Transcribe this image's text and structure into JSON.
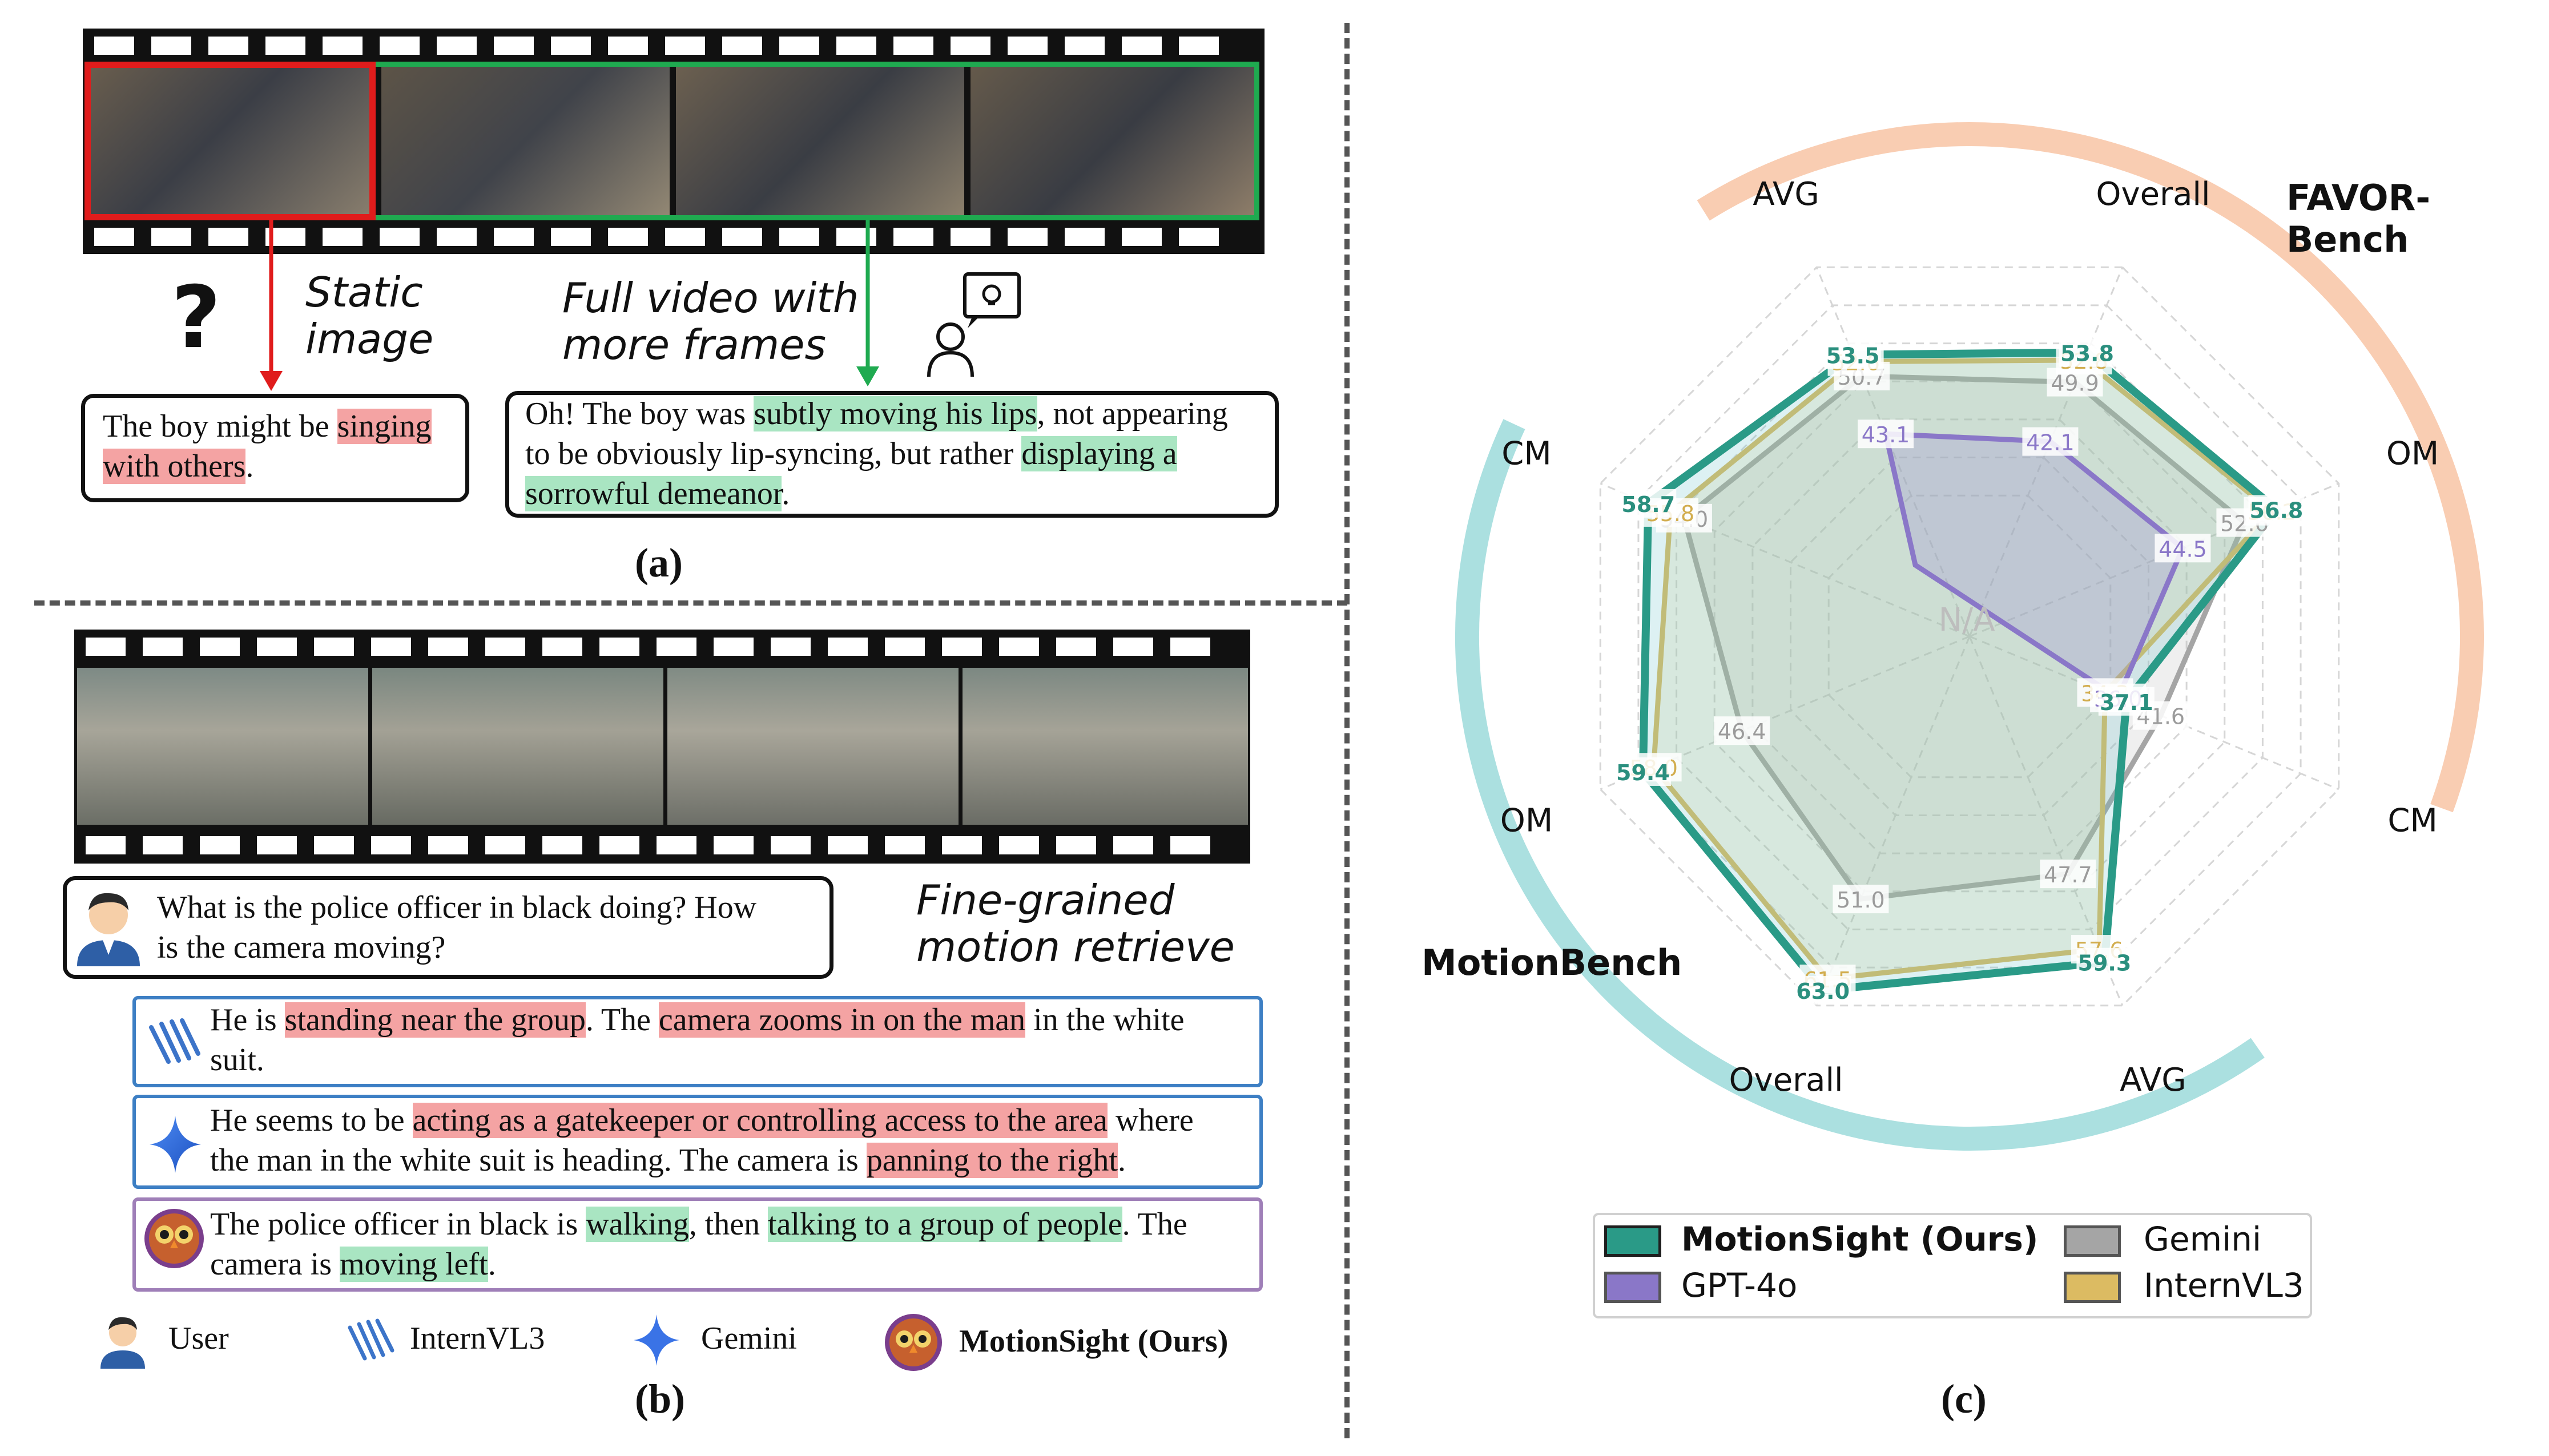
{
  "panel_a": {
    "label": "(a)",
    "question_mark": "?",
    "static_label_1": "Static",
    "static_label_2": "image",
    "full_label_1": "Full video with",
    "full_label_2": "more frames",
    "static_answer": {
      "t1": "The boy might be ",
      "h1": "singing",
      "h2": "with others",
      "t2": "."
    },
    "full_answer": {
      "t1": "Oh! The boy was ",
      "h1": "subtly moving his lips",
      "t2": ", not appearing",
      "t3": "to be obviously lip-syncing, but rather ",
      "h2": "displaying a",
      "h3": "sorrowful demeanor",
      "t4": "."
    }
  },
  "panel_b": {
    "label": "(b)",
    "question": {
      "line1": "What is the police officer in black doing? How",
      "line2": "is the camera moving?"
    },
    "fine_label_1": "Fine-grained",
    "fine_label_2": "motion retrieve",
    "answers": [
      {
        "model": "InternVL3",
        "border": "#3d7fc4",
        "a": "He is ",
        "b": "standing near the group",
        "c": ". The ",
        "d": "camera zooms in on the man",
        "e": " in the white",
        "f": "suit."
      },
      {
        "model": "Gemini",
        "border": "#3d7fc4",
        "a": "He seems to be ",
        "b": "acting as a gatekeeper or controlling access to the area",
        "c": " where",
        "d": "the man in the white suit is heading. The camera is ",
        "e": "panning to the right",
        "f": "."
      },
      {
        "model": "MotionSight",
        "border": "#9f7fb8",
        "a": "The police officer in black is ",
        "b": "walking",
        "c": ", then ",
        "d": "talking to a group of people",
        "e": ". The",
        "f": "camera is ",
        "g": "moving left",
        "h": "."
      }
    ],
    "legend": [
      "User",
      "InternVL3",
      "Gemini",
      "MotionSight (Ours)"
    ]
  },
  "panel_c": {
    "label": "(c)",
    "bench_favor": "FAVOR-Bench",
    "bench_motion": "MotionBench",
    "na_label": "N/A",
    "legend": [
      "MotionSight (Ours)",
      "Gemini",
      "GPT-4o",
      "InternVL3"
    ]
  },
  "chart_data": {
    "type": "radar",
    "axes": [
      "Overall",
      "OM",
      "CM",
      "AVG",
      "Overall",
      "OM",
      "CM",
      "AVG"
    ],
    "axis_groups": {
      "FAVOR-Bench": [
        "AVG",
        "Overall",
        "OM",
        "CM"
      ],
      "MotionBench": [
        "CM",
        "OM",
        "Overall",
        "AVG"
      ]
    },
    "series": [
      {
        "name": "MotionSight (Ours)",
        "color": "#2a9a87",
        "values": [
          53.8,
          56.8,
          37.1,
          59.3,
          63.0,
          59.4,
          58.7,
          53.5
        ]
      },
      {
        "name": "Gemini",
        "color": "#a5a5a5",
        "values": [
          49.9,
          52.6,
          41.6,
          47.7,
          51.0,
          46.4,
          54.0,
          50.7
        ]
      },
      {
        "name": "GPT-4o",
        "color": "#8a77c8",
        "values": [
          42.1,
          44.5,
          36.0,
          null,
          null,
          null,
          null,
          43.1
        ]
      },
      {
        "name": "InternVL3",
        "color": "#dcbb62",
        "values": [
          52.8,
          56.2,
          34.3,
          57.6,
          61.5,
          58.0,
          55.8,
          52.6
        ]
      }
    ]
  }
}
